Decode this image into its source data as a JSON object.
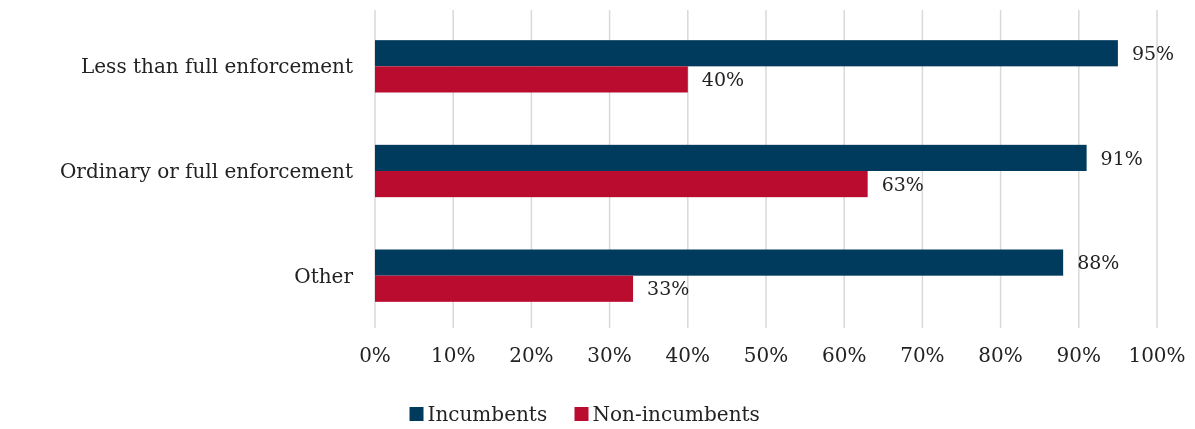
{
  "chart_data": {
    "type": "bar",
    "orientation": "horizontal",
    "categories": [
      "Less than full enforcement",
      "Ordinary or full enforcement",
      "Other"
    ],
    "series": [
      {
        "name": "Incumbents",
        "color": "#003a5d",
        "values": [
          95,
          91,
          88
        ],
        "value_labels": [
          "95%",
          "91%",
          "88%"
        ]
      },
      {
        "name": "Non-incumbents",
        "color": "#ba0c2f",
        "values": [
          40,
          63,
          33
        ],
        "value_labels": [
          "40%",
          "63%",
          "33%"
        ]
      }
    ],
    "xlim": [
      0,
      100
    ],
    "xticks": [
      {
        "value": 0,
        "label": "0%"
      },
      {
        "value": 10,
        "label": "10%"
      },
      {
        "value": 20,
        "label": "20%"
      },
      {
        "value": 30,
        "label": "30%"
      },
      {
        "value": 40,
        "label": "40%"
      },
      {
        "value": 50,
        "label": "50%"
      },
      {
        "value": 60,
        "label": "60%"
      },
      {
        "value": 70,
        "label": "70%"
      },
      {
        "value": 80,
        "label": "80%"
      },
      {
        "value": 90,
        "label": "90%"
      },
      {
        "value": 100,
        "label": "100%"
      }
    ],
    "grid": "x",
    "legend": "bottom"
  }
}
